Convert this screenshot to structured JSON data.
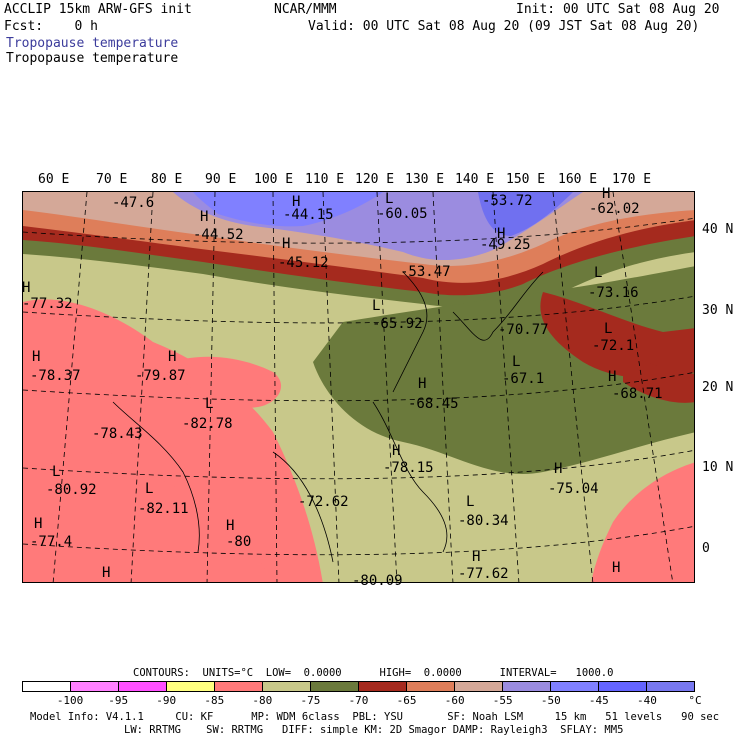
{
  "header": {
    "left1": "ACCLIP 15km ARW-GFS init",
    "center": "NCAR/MMM",
    "right1": "Init: 00 UTC Sat 08 Aug 20",
    "fcst": "Fcst:    0 h",
    "right2": "Valid: 00 UTC Sat 08 Aug 20 (09 JST Sat 08 Aug 20)",
    "field1": "Tropopause temperature",
    "field2": "Tropopause temperature"
  },
  "map": {
    "lon_labels": [
      "60 E",
      "70 E",
      "80 E",
      "90 E",
      "100 E",
      "110 E",
      "120 E",
      "130 E",
      "140 E",
      "150 E",
      "160 E",
      "170 E"
    ],
    "lat_labels": [
      "40 N",
      "30 N",
      "20 N",
      "10 N",
      "0"
    ],
    "centers": [
      {
        "t": "-47.6"
      },
      {
        "t": "H"
      },
      {
        "t": "-44.52"
      },
      {
        "t": "H"
      },
      {
        "t": "-44.15"
      },
      {
        "t": "H"
      },
      {
        "t": "-45.12"
      },
      {
        "t": "L"
      },
      {
        "t": "-60.05"
      },
      {
        "t": "-53.47"
      },
      {
        "t": "-53.72"
      },
      {
        "t": "H"
      },
      {
        "t": "-49.25"
      },
      {
        "t": "H"
      },
      {
        "t": "-62.02"
      },
      {
        "t": "H"
      },
      {
        "t": "-77.32"
      },
      {
        "t": "L"
      },
      {
        "t": "-73.16"
      },
      {
        "t": "L"
      },
      {
        "t": "-65.92"
      },
      {
        "t": "-70.77"
      },
      {
        "t": "L"
      },
      {
        "t": "-72.1"
      },
      {
        "t": "H"
      },
      {
        "t": "-78.37"
      },
      {
        "t": "H"
      },
      {
        "t": "-79.87"
      },
      {
        "t": "L"
      },
      {
        "t": "-67.1"
      },
      {
        "t": "H"
      },
      {
        "t": "-68.71"
      },
      {
        "t": "H"
      },
      {
        "t": "-68.45"
      },
      {
        "t": "L"
      },
      {
        "t": "-78.43"
      },
      {
        "t": "-82.78"
      },
      {
        "t": "H"
      },
      {
        "t": "-78.15"
      },
      {
        "t": "L"
      },
      {
        "t": "-80.92"
      },
      {
        "t": "H"
      },
      {
        "t": "-75.04"
      },
      {
        "t": "L"
      },
      {
        "t": "-82.11"
      },
      {
        "t": "-72.62"
      },
      {
        "t": "L"
      },
      {
        "t": "-80.34"
      },
      {
        "t": "H"
      },
      {
        "t": "-77.4"
      },
      {
        "t": "H"
      },
      {
        "t": "-80"
      },
      {
        "t": "H"
      },
      {
        "t": "-77.62"
      },
      {
        "t": "-80.09"
      },
      {
        "t": "H"
      },
      {
        "t": "H"
      }
    ]
  },
  "contours": {
    "line": "CONTOURS:  UNITS=°C  LOW=  0.0000      HIGH=  0.0000      INTERVAL=   1000.0"
  },
  "colorbar": {
    "colors": [
      "#ffffff",
      "#ff80ff",
      "#ff50ff",
      "#ffff80",
      "#ff7a7a",
      "#c8c88a",
      "#6b7a3c",
      "#a52a1e",
      "#de7e5a",
      "#d4a898",
      "#9b8ce0",
      "#8080ff",
      "#6464ff",
      "#7878f0"
    ],
    "ticks": [
      "-100",
      "-95",
      "-90",
      "-85",
      "-80",
      "-75",
      "-70",
      "-65",
      "-60",
      "-55",
      "-50",
      "-45",
      "-40",
      "°C"
    ]
  },
  "footer": {
    "line1": "Model Info: V4.1.1     CU: KF      MP: WDM 6class  PBL: YSU       SF: Noah LSM     15 km   51 levels   90 sec",
    "line2": "LW: RRTMG    SW: RRTMG   DIFF: simple KM: 2D Smagor DAMP: Rayleigh3  SFLAY: MM5"
  }
}
